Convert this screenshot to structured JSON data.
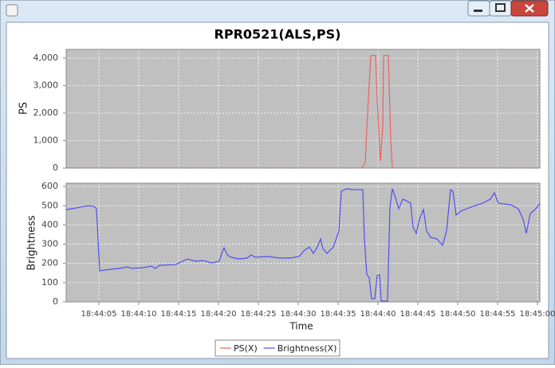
{
  "chart_data": [
    {
      "type": "line",
      "title": "RPR0521(ALS,PS)",
      "ylabel": "PS",
      "ylim": [
        0,
        4320
      ],
      "yticks": [
        0,
        {
          "value": 1000,
          "label": "1,000"
        },
        {
          "value": 2000,
          "label": "2,000"
        },
        {
          "value": 3000,
          "label": "3,000"
        },
        {
          "value": 4000,
          "label": "4,000"
        }
      ],
      "xlim": [
        0.9,
        60.3
      ],
      "grid": true,
      "series": [
        {
          "name": "PS(X)",
          "color": "#f06060",
          "x": [
            0.9,
            38.0,
            38.4,
            38.7,
            39.1,
            39.7,
            39.9,
            40.3,
            40.6,
            40.7,
            41.3,
            41.6,
            41.8,
            60.3
          ],
          "values": [
            0,
            0,
            200,
            2000,
            4096,
            4096,
            2500,
            250,
            1500,
            4096,
            4096,
            1000,
            0,
            0
          ]
        }
      ]
    },
    {
      "type": "line",
      "ylabel": "Brightness",
      "xlabel": "Time",
      "ylim": [
        0,
        617
      ],
      "yticks": [
        0,
        100,
        200,
        300,
        400,
        500,
        600
      ],
      "xlim": [
        0.9,
        60.3
      ],
      "xticks": [
        {
          "value": 5,
          "label": "18:44:05"
        },
        {
          "value": 10,
          "label": "18:44:10"
        },
        {
          "value": 15,
          "label": "18:44:15"
        },
        {
          "value": 20,
          "label": "18:44:20"
        },
        {
          "value": 25,
          "label": "18:44:25"
        },
        {
          "value": 30,
          "label": "18:44:30"
        },
        {
          "value": 35,
          "label": "18:44:35"
        },
        {
          "value": 40,
          "label": "18:44:40"
        },
        {
          "value": 45,
          "label": "18:44:45"
        },
        {
          "value": 50,
          "label": "18:44:50"
        },
        {
          "value": 55,
          "label": "18:44:55"
        },
        {
          "value": 60,
          "label": "18:45:00"
        }
      ],
      "grid": true,
      "series": [
        {
          "name": "Brightness(X)",
          "color": "#5050f0",
          "x": [
            0.9,
            1.6,
            2.6,
            3.6,
            4.4,
            4.7,
            4.9,
            5.1,
            5.6,
            6.6,
            7.6,
            8.6,
            9.1,
            10.6,
            11.6,
            12.1,
            12.6,
            14.6,
            16.1,
            17.1,
            18.1,
            19.1,
            20.1,
            20.4,
            20.7,
            21.1,
            21.6,
            22.6,
            23.6,
            24.1,
            24.6,
            26.1,
            27.6,
            29.1,
            30.1,
            30.8,
            31.4,
            31.9,
            32.4,
            32.8,
            33.1,
            33.6,
            34.4,
            35.1,
            35.4,
            36.1,
            37.1,
            38.1,
            38.3,
            38.6,
            38.9,
            39.2,
            39.6,
            39.9,
            40.2,
            40.4,
            41.2,
            41.5,
            41.8,
            42.1,
            42.6,
            43.1,
            43.6,
            44.1,
            44.4,
            44.8,
            45.2,
            45.7,
            46.1,
            46.6,
            47.4,
            48.1,
            48.6,
            49.1,
            49.4,
            49.8,
            50.4,
            51.6,
            53.1,
            54.1,
            54.6,
            55.1,
            56.6,
            57.6,
            58.2,
            58.6,
            59.1,
            59.8,
            60.3
          ],
          "values": [
            480,
            484,
            492,
            500,
            496,
            484,
            327,
            161,
            165,
            170,
            174,
            182,
            174,
            178,
            186,
            174,
            190,
            194,
            223,
            211,
            215,
            203,
            211,
            252,
            281,
            244,
            232,
            223,
            228,
            244,
            232,
            236,
            228,
            228,
            236,
            269,
            285,
            252,
            285,
            327,
            277,
            252,
            285,
            368,
            575,
            588,
            583,
            583,
            327,
            141,
            128,
            17,
            17,
            137,
            141,
            4,
            4,
            492,
            588,
            554,
            484,
            534,
            525,
            513,
            389,
            356,
            430,
            480,
            368,
            335,
            327,
            294,
            368,
            583,
            575,
            451,
            472,
            492,
            513,
            534,
            567,
            513,
            505,
            484,
            430,
            356,
            459,
            484,
            513
          ]
        }
      ]
    }
  ]
}
